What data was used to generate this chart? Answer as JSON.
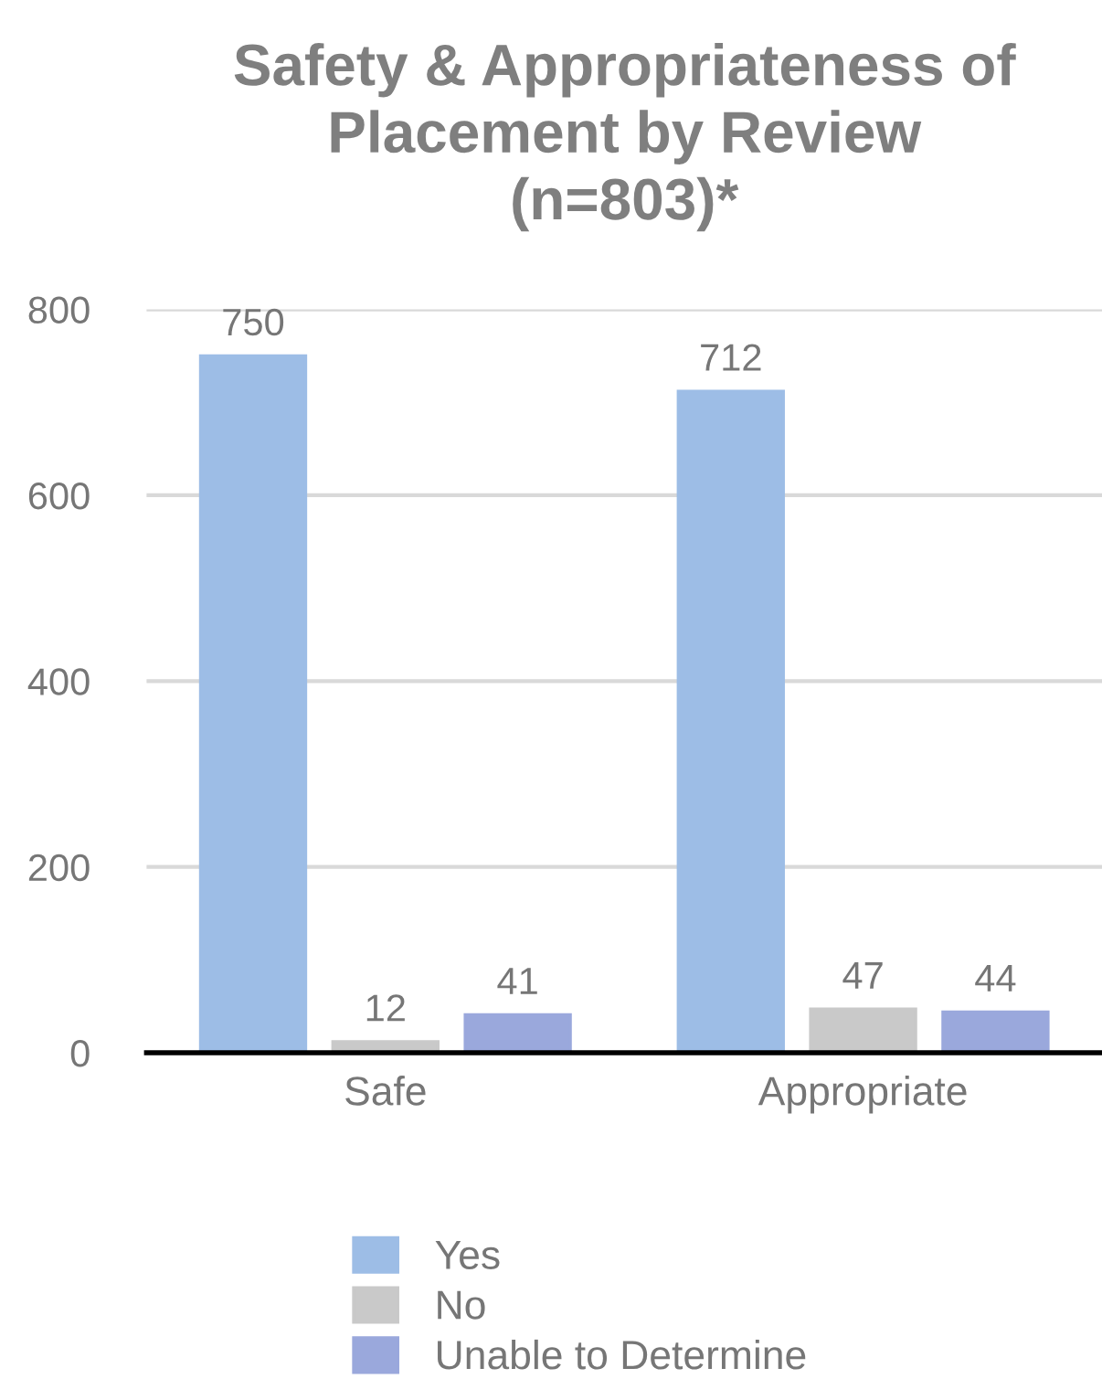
{
  "chart_data": {
    "type": "bar",
    "title": "Safety & Appropriateness of\nPlacement by Review\n(n=803)*",
    "categories": [
      "Safe",
      "Appropriate"
    ],
    "series": [
      {
        "name": "Yes",
        "color": "#9dbde6",
        "values": [
          750,
          712
        ]
      },
      {
        "name": "No",
        "color": "#c9c9c9",
        "values": [
          12,
          47
        ]
      },
      {
        "name": "Unable to Determine",
        "color": "#9aa8dc",
        "values": [
          41,
          44
        ]
      }
    ],
    "ylim": [
      0,
      800
    ],
    "yticks": [
      0,
      200,
      400,
      600,
      800
    ],
    "grid": "y",
    "legend": "bottom",
    "data_labels": true
  }
}
